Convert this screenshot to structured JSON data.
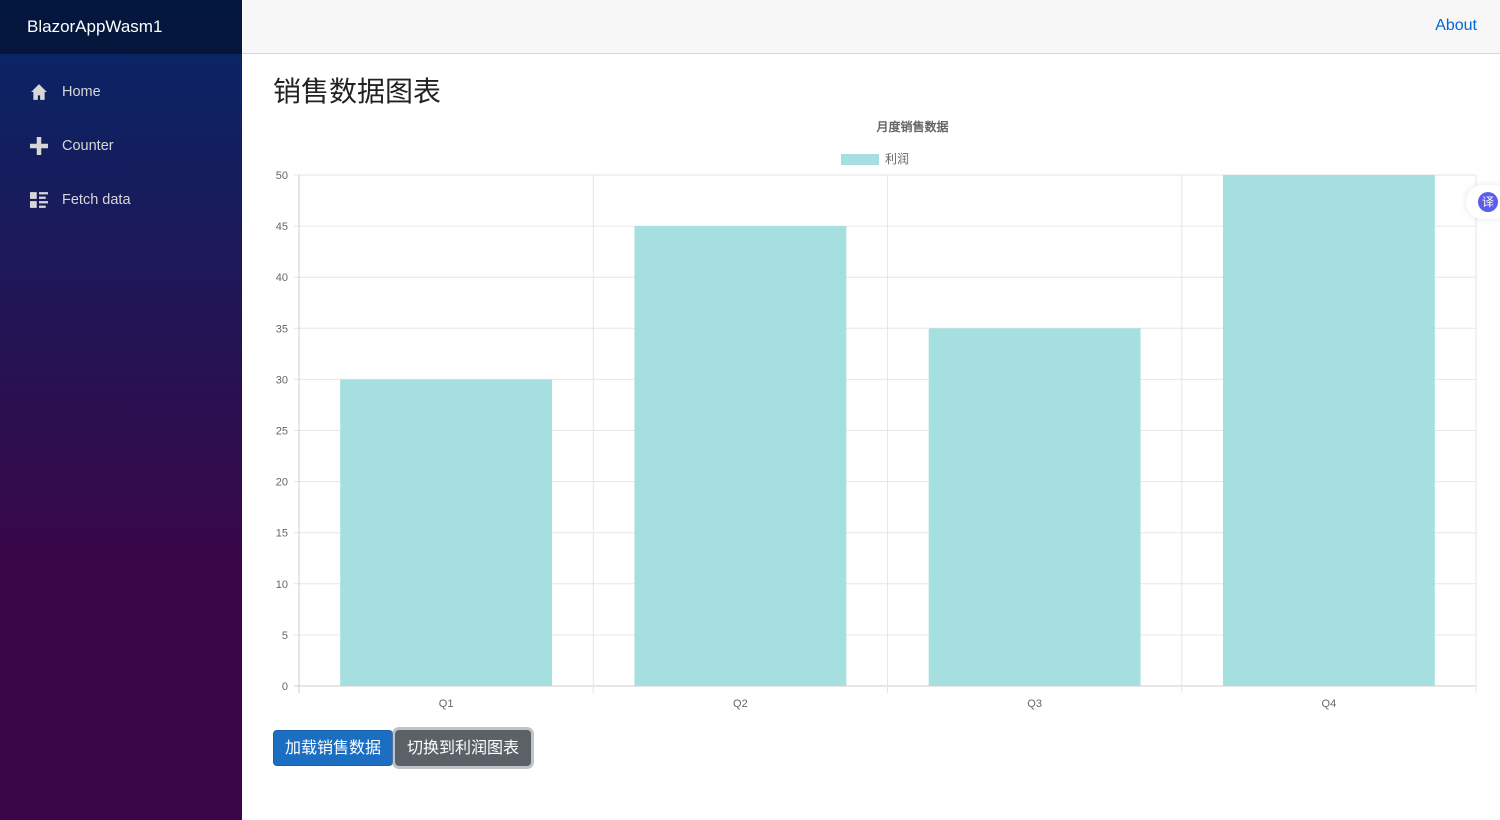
{
  "sidebar": {
    "brand": "BlazorAppWasm1",
    "items": [
      {
        "label": "Home",
        "icon": "home-icon"
      },
      {
        "label": "Counter",
        "icon": "plus-icon"
      },
      {
        "label": "Fetch data",
        "icon": "list-icon"
      }
    ]
  },
  "topbar": {
    "about": "About"
  },
  "page": {
    "title": "销售数据图表"
  },
  "buttons": {
    "load": "加载销售数据",
    "switch": "切换到利润图表"
  },
  "translate_widget": {
    "label": "译"
  },
  "chart_data": {
    "type": "bar",
    "title": "月度销售数据",
    "categories": [
      "Q1",
      "Q2",
      "Q3",
      "Q4"
    ],
    "series": [
      {
        "name": "利润",
        "values": [
          30,
          45,
          35,
          50
        ],
        "color": "#a6dfe0"
      }
    ],
    "ylim": [
      0,
      50
    ],
    "yticks": [
      0,
      5,
      10,
      15,
      20,
      25,
      30,
      35,
      40,
      45,
      50
    ],
    "grid": true,
    "legend": "top"
  }
}
